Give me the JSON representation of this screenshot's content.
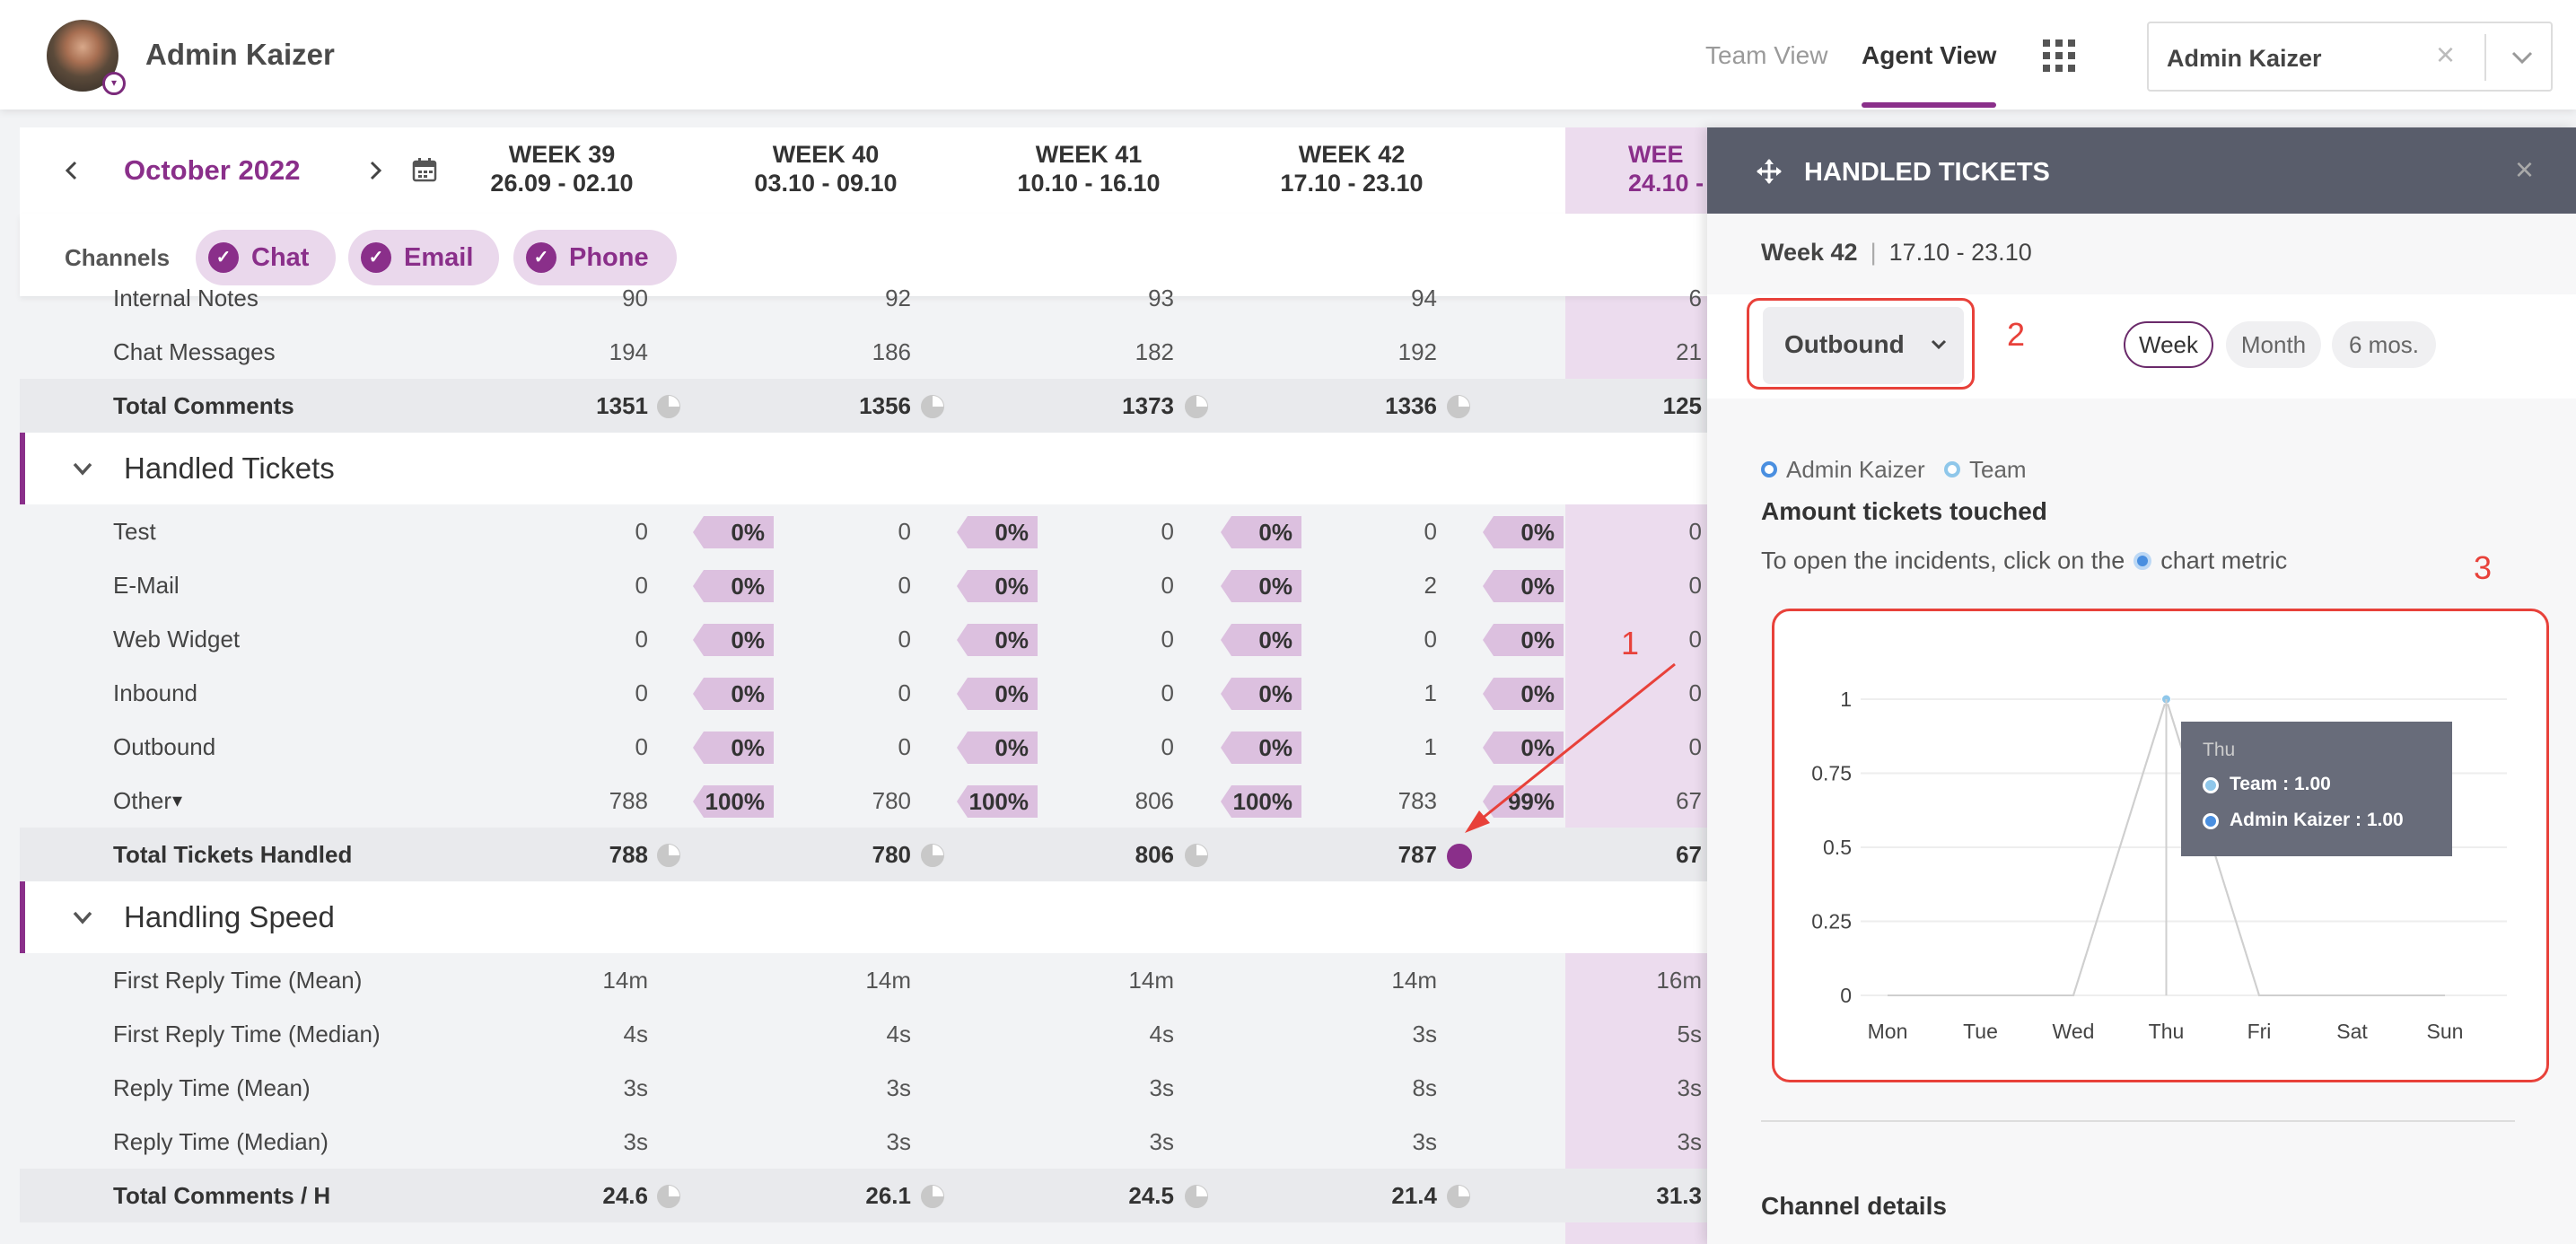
{
  "header": {
    "user_name": "Admin Kaizer",
    "views": {
      "team": "Team View",
      "agent": "Agent View"
    },
    "agent_select": {
      "value": "Admin Kaizer"
    }
  },
  "calendar": {
    "month": "October 2022",
    "weeks": [
      {
        "label": "WEEK 39",
        "range": "26.09 - 02.10"
      },
      {
        "label": "WEEK 40",
        "range": "03.10 - 09.10"
      },
      {
        "label": "WEEK 41",
        "range": "10.10 - 16.10"
      },
      {
        "label": "WEEK 42",
        "range": "17.10 - 23.10"
      },
      {
        "label": "WEE",
        "range": "24.10 -"
      }
    ]
  },
  "channels": {
    "label": "Channels",
    "items": [
      "Chat",
      "Email",
      "Phone"
    ]
  },
  "comments_rows": [
    {
      "label": "Internal Notes",
      "values": [
        "90",
        "92",
        "93",
        "94",
        "6"
      ]
    },
    {
      "label": "Chat Messages",
      "values": [
        "194",
        "186",
        "182",
        "192",
        "21"
      ]
    }
  ],
  "comments_total": {
    "label": "Total Comments",
    "values": [
      "1351",
      "1356",
      "1373",
      "1336",
      "125"
    ]
  },
  "handled_tickets": {
    "title": "Handled Tickets",
    "rows": [
      {
        "label": "Test",
        "values": [
          "0",
          "0",
          "0",
          "0",
          "0"
        ],
        "pcts": [
          "0%",
          "0%",
          "0%",
          "0%"
        ]
      },
      {
        "label": "E-Mail",
        "values": [
          "0",
          "0",
          "0",
          "2",
          "0"
        ],
        "pcts": [
          "0%",
          "0%",
          "0%",
          "0%"
        ]
      },
      {
        "label": "Web Widget",
        "values": [
          "0",
          "0",
          "0",
          "0",
          "0"
        ],
        "pcts": [
          "0%",
          "0%",
          "0%",
          "0%"
        ]
      },
      {
        "label": "Inbound",
        "values": [
          "0",
          "0",
          "0",
          "1",
          "0"
        ],
        "pcts": [
          "0%",
          "0%",
          "0%",
          "0%"
        ]
      },
      {
        "label": "Outbound",
        "values": [
          "0",
          "0",
          "0",
          "1",
          "0"
        ],
        "pcts": [
          "0%",
          "0%",
          "0%",
          "0%"
        ]
      },
      {
        "label": "Other",
        "values": [
          "788",
          "780",
          "806",
          "783",
          "67"
        ],
        "pcts": [
          "100%",
          "100%",
          "100%",
          "99%"
        ]
      }
    ],
    "total": {
      "label": "Total Tickets Handled",
      "values": [
        "788",
        "780",
        "806",
        "787",
        "67"
      ]
    }
  },
  "handling_speed": {
    "title": "Handling Speed",
    "rows": [
      {
        "label": "First Reply Time (Mean)",
        "values": [
          "14m",
          "14m",
          "14m",
          "14m",
          "16m"
        ]
      },
      {
        "label": "First Reply Time (Median)",
        "values": [
          "4s",
          "4s",
          "4s",
          "3s",
          "5s"
        ]
      },
      {
        "label": "Reply Time (Mean)",
        "values": [
          "3s",
          "3s",
          "3s",
          "8s",
          "3s"
        ]
      },
      {
        "label": "Reply Time (Median)",
        "values": [
          "3s",
          "3s",
          "3s",
          "3s",
          "3s"
        ]
      }
    ],
    "total": {
      "label": "Total Comments / H",
      "values": [
        "24.6",
        "26.1",
        "24.5",
        "21.4",
        "31.3"
      ]
    }
  },
  "panel": {
    "title": "HANDLED TICKETS",
    "week": "Week 42",
    "range": "17.10 - 23.10",
    "metric": "Outbound",
    "ranges": [
      "Week",
      "Month",
      "6 mos."
    ],
    "legend": [
      "Admin Kaizer",
      "Team"
    ],
    "chart_heading": "Amount tickets touched",
    "hint_before": "To open the incidents, click on the",
    "hint_after": "chart metric",
    "tooltip": {
      "day": "Thu",
      "team": "Team :  1.00",
      "admin": "Admin Kaizer :  1.00"
    },
    "channel_details": "Channel details"
  },
  "chart_data": {
    "type": "line",
    "categories": [
      "Mon",
      "Tue",
      "Wed",
      "Thu",
      "Fri",
      "Sat",
      "Sun"
    ],
    "series": [
      {
        "name": "Admin Kaizer",
        "values": [
          0,
          0,
          0,
          1,
          0,
          0,
          0
        ]
      },
      {
        "name": "Team",
        "values": [
          0,
          0,
          0,
          1,
          0,
          0,
          0
        ]
      }
    ],
    "yticks": [
      "0",
      "0.25",
      "0.5",
      "0.75",
      "1"
    ],
    "ylim": [
      0,
      1
    ]
  },
  "annotations": {
    "c1": "1",
    "c2": "2",
    "c3": "3"
  },
  "colors": {
    "accent": "#8a2f8a",
    "callout": "#e8413a",
    "admin_series": "#4a8fe0",
    "team_series": "#8fc7ea"
  },
  "icons": [
    "chevron-left-icon",
    "chevron-right-icon",
    "calendar-icon",
    "apps-grid-icon",
    "move-icon",
    "close-icon",
    "chevron-down-icon",
    "check-icon",
    "pie-icon"
  ]
}
